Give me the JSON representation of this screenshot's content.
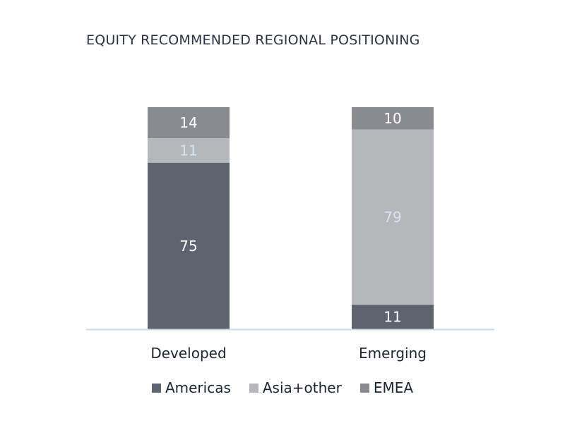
{
  "chart_data": {
    "type": "bar",
    "stacked": true,
    "title": "EQUITY RECOMMENDED REGIONAL POSITIONING",
    "categories": [
      "Developed",
      "Emerging"
    ],
    "series": [
      {
        "name": "Americas",
        "values": [
          75,
          11
        ],
        "color": "#5e6370",
        "label_color": "#ffffff"
      },
      {
        "name": "Asia+other",
        "values": [
          11,
          79
        ],
        "color": "#b6b7bb",
        "label_color": "#d7e3f3"
      },
      {
        "name": "EMEA",
        "values": [
          14,
          10
        ],
        "color": "#8a8b91",
        "label_color": "#ffffff"
      }
    ],
    "ylim": [
      0,
      100
    ],
    "grid": false,
    "legend_position": "bottom",
    "axis_color": "#c5dbee"
  }
}
